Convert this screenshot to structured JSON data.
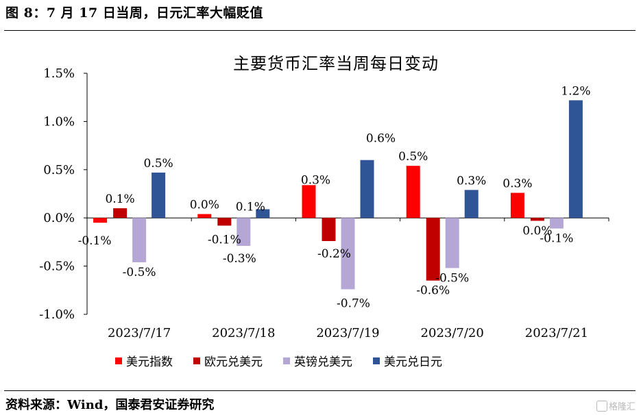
{
  "header": {
    "figure_title": "图 8：7 月 17 日当周，日元汇率大幅贬值"
  },
  "footer": {
    "source": "资料来源：Wind，国泰君安证券研究",
    "watermark": "格隆汇"
  },
  "chart_data": {
    "type": "bar",
    "title": "主要货币汇率当周每日变动",
    "categories": [
      "2023/7/17",
      "2023/7/18",
      "2023/7/19",
      "2023/7/20",
      "2023/7/21"
    ],
    "series": [
      {
        "name": "美元指数",
        "color": "#FF0000",
        "values": [
          -0.05,
          0.04,
          0.34,
          0.54,
          0.26
        ],
        "labels": [
          "-0.1%",
          "0.0%",
          "0.3%",
          "0.5%",
          "0.3%"
        ]
      },
      {
        "name": "欧元兑美元",
        "color": "#C00000",
        "values": [
          0.1,
          -0.08,
          -0.24,
          -0.65,
          -0.03
        ],
        "labels": [
          "0.1%",
          "-0.1%",
          "-0.2%",
          "-0.6%",
          "0.0%"
        ]
      },
      {
        "name": "英镑兑美元",
        "color": "#B4A7D6",
        "values": [
          -0.46,
          -0.29,
          -0.74,
          -0.52,
          -0.11
        ],
        "labels": [
          "-0.5%",
          "-0.3%",
          "-0.7%",
          "-0.5%",
          "-0.1%"
        ]
      },
      {
        "name": "美元兑日元",
        "color": "#2F5597",
        "values": [
          0.47,
          0.09,
          0.6,
          0.29,
          1.22
        ],
        "labels": [
          "0.5%",
          "0.1%",
          "0.6%",
          "0.3%",
          "1.2%"
        ]
      }
    ],
    "yticks": [
      "1.5%",
      "1.0%",
      "0.5%",
      "0.0%",
      "-0.5%",
      "-1.0%"
    ],
    "ytick_values": [
      1.5,
      1.0,
      0.5,
      0.0,
      -0.5,
      -1.0
    ],
    "ylim": [
      -1.0,
      1.5
    ],
    "xlabel": "",
    "ylabel": "",
    "grid": false,
    "legend_position": "bottom"
  }
}
